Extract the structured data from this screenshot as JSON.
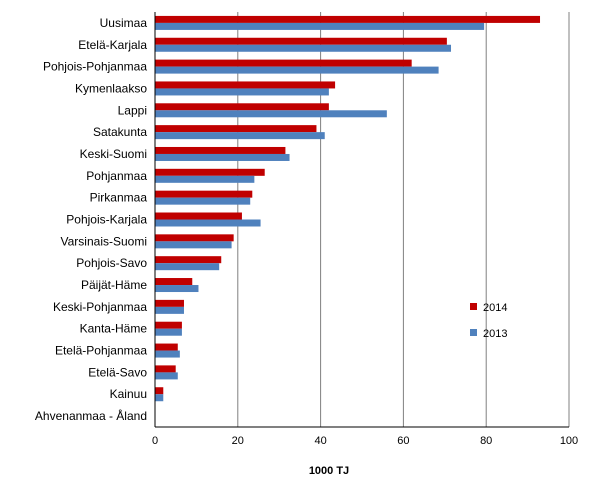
{
  "chart_data": {
    "type": "bar",
    "orientation": "horizontal",
    "xlabel": "1000 TJ",
    "xlim": [
      0,
      100
    ],
    "xticks": [
      0,
      20,
      40,
      60,
      80,
      100
    ],
    "grid": "vertical",
    "legend_position": "right",
    "categories": [
      "Uusimaa",
      "Etelä-Karjala",
      "Pohjois-Pohjanmaa",
      "Kymenlaakso",
      "Lappi",
      "Satakunta",
      "Keski-Suomi",
      "Pohjanmaa",
      "Pirkanmaa",
      "Pohjois-Karjala",
      "Varsinais-Suomi",
      "Pohjois-Savo",
      "Päijät-Häme",
      "Keski-Pohjanmaa",
      "Kanta-Häme",
      "Etelä-Pohjanmaa",
      "Etelä-Savo",
      "Kainuu",
      "Ahvenanmaa - Åland"
    ],
    "series": [
      {
        "name": "2014",
        "color": "#c00000",
        "values": [
          93,
          70.5,
          62,
          43.5,
          42,
          39,
          31.5,
          26.5,
          23.5,
          21,
          19,
          16,
          9,
          7,
          6.5,
          5.5,
          5,
          2,
          0
        ]
      },
      {
        "name": "2013",
        "color": "#4f81bd",
        "values": [
          79.5,
          71.5,
          68.5,
          42,
          56,
          41,
          32.5,
          24,
          23,
          25.5,
          18.5,
          15.5,
          10.5,
          7,
          6.5,
          6,
          5.5,
          2,
          0
        ]
      }
    ]
  }
}
